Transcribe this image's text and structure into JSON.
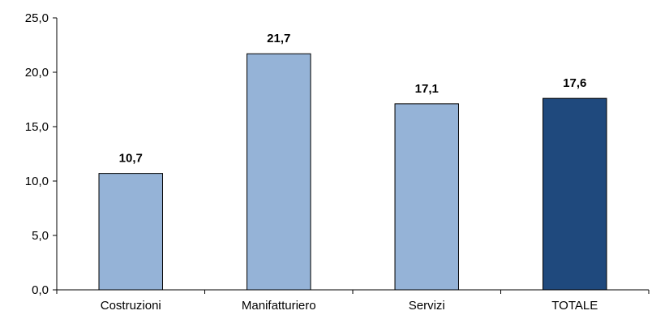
{
  "chart_data": {
    "type": "bar",
    "title": "",
    "xlabel": "",
    "ylabel": "",
    "categories": [
      "Costruzioni",
      "Manifatturiero",
      "Servizi",
      "TOTALE"
    ],
    "values": [
      10.7,
      21.7,
      17.1,
      17.6
    ],
    "value_labels": [
      "10,7",
      "21,7",
      "17,1",
      "17,6"
    ],
    "ylim": [
      0,
      25
    ],
    "yticks": [
      0,
      5,
      10,
      15,
      20,
      25
    ],
    "ytick_labels": [
      "0,0",
      "5,0",
      "10,0",
      "15,0",
      "20,0",
      "25,0"
    ],
    "grid": false,
    "legend": "none",
    "colors": {
      "bar": "#95b3d7",
      "bar_highlight": "#1f497d",
      "bar_stroke": "#000000",
      "axis": "#000000"
    },
    "highlight_index": 3
  }
}
